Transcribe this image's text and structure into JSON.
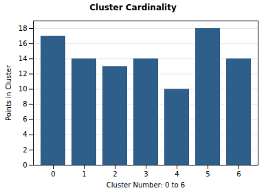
{
  "chart_data": {
    "type": "bar",
    "title": "Cluster Cardinality",
    "xlabel": "Cluster Number: 0 to 6",
    "ylabel": "Points in Cluster",
    "categories": [
      0,
      1,
      2,
      3,
      4,
      5,
      6
    ],
    "values": [
      17,
      14,
      13,
      14,
      10,
      18,
      14
    ],
    "color": "#2d5f8a",
    "ylim": [
      0,
      19
    ],
    "yticks": [
      0,
      2,
      4,
      6,
      8,
      10,
      12,
      14,
      16,
      18
    ],
    "grid": true
  }
}
